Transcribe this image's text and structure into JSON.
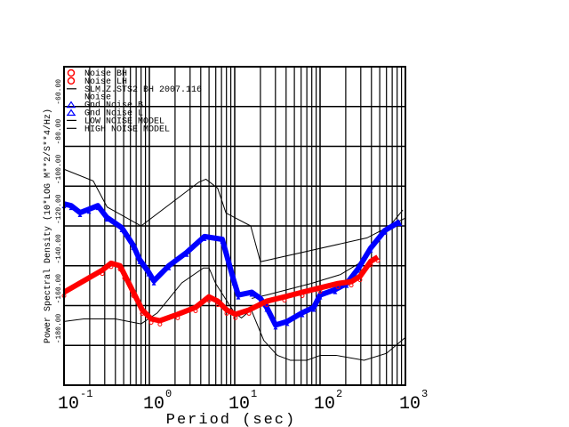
{
  "chart_data": {
    "type": "scatter",
    "title": "",
    "xlabel": "Period (sec)",
    "ylabel": "Power Spectral Density (10*LOG M**2/S**4/Hz)",
    "xscale": "log",
    "xlim": [
      0.1,
      1000
    ],
    "ylim": [
      -200,
      -40
    ],
    "grid": true,
    "legend_placement": "top-left",
    "x_ticks": [
      {
        "base": "10",
        "exp": "-1",
        "value": 0.1
      },
      {
        "base": "10",
        "exp": "0",
        "value": 1
      },
      {
        "base": "10",
        "exp": "1",
        "value": 10
      },
      {
        "base": "10",
        "exp": "2",
        "value": 100
      },
      {
        "base": "10",
        "exp": "3",
        "value": 1000
      }
    ],
    "y_ticks": [
      {
        "label": "-60.00",
        "value": -60
      },
      {
        "label": "-80.00",
        "value": -80
      },
      {
        "label": "-100.00",
        "value": -100
      },
      {
        "label": "-120.00",
        "value": -120
      },
      {
        "label": "-140.00",
        "value": -140
      },
      {
        "label": "-160.00",
        "value": -160
      },
      {
        "label": "-180.00",
        "value": -180
      }
    ],
    "legend": [
      {
        "label": "Noise BH",
        "symbol": "circle",
        "color": "#ff0000"
      },
      {
        "label": "Noise LH",
        "symbol": "circle",
        "color": "#ff0000"
      },
      {
        "label": "SLM.Z.STS2 BH  2007.116",
        "symbol": "line",
        "color": "#000000"
      },
      {
        "label": "Noise",
        "symbol": "none",
        "color": "#000000"
      },
      {
        "label": "Gnd Noise B",
        "symbol": "triangle",
        "color": "#0000ff"
      },
      {
        "label": "Gnd Noise L",
        "symbol": "triangle",
        "color": "#0000ff"
      },
      {
        "label": "LOW NOISE MODEL",
        "symbol": "line",
        "color": "#000000"
      },
      {
        "label": "HIGH NOISE MODEL",
        "symbol": "line",
        "color": "#000000"
      }
    ],
    "series": [
      {
        "name": "Gnd Noise B",
        "color": "#0000ff",
        "marker": "triangle",
        "x": [
          0.1,
          0.121,
          0.154,
          0.196,
          0.249,
          0.316,
          0.475,
          0.649,
          0.768,
          0.976,
          1.13,
          1.69,
          2.74,
          4.42,
          7.14,
          9.78,
          11.0,
          15.8,
          20.0,
          23.7,
          30.1,
          41.2,
          61.9,
          84.5,
          100,
          150,
          205,
          281,
          392,
          576,
          866
        ],
        "y": [
          -108.9,
          -109.8,
          -113.3,
          -111.6,
          -109.8,
          -115.6,
          -120.9,
          -129.8,
          -136.9,
          -143.1,
          -147.6,
          -140,
          -133.3,
          -125.3,
          -126.7,
          -147.6,
          -154.7,
          -153.3,
          -156.4,
          -160.9,
          -169.8,
          -168,
          -163.6,
          -160.9,
          -154.7,
          -152,
          -148.9,
          -141.3,
          -131.1,
          -122.2,
          -117.8
        ]
      },
      {
        "name": "Noise LH",
        "color": "#ff0000",
        "marker": "circle",
        "x": [
          0.1,
          0.281,
          0.356,
          0.453,
          0.511,
          0.649,
          0.826,
          1.05,
          1.33,
          2.15,
          3.48,
          4.99,
          6.34,
          8.06,
          10.2,
          14.7,
          23.7,
          38.3,
          61.9,
          100,
          162,
          232,
          294,
          392,
          475
        ],
        "y": [
          -153.3,
          -142.2,
          -138.7,
          -140,
          -144.4,
          -153.3,
          -162.2,
          -166.7,
          -167.6,
          -164.4,
          -160.9,
          -155.6,
          -157.8,
          -162.2,
          -164.4,
          -162.2,
          -157.8,
          -155.6,
          -153.3,
          -151.1,
          -148.9,
          -148,
          -145.3,
          -137.8,
          -135.6
        ]
      },
      {
        "name": "SLM.Z.STS2 BH 2007.116 Noise",
        "color": "#000000",
        "marker": "line",
        "x": [
          15.8,
          23.7,
          78.7,
          174,
          281,
          933
        ],
        "y": [
          -156.4,
          -154.7,
          -148.9,
          -144.4,
          -139,
          -112
        ]
      },
      {
        "name": "LOW NOISE MODEL",
        "color": "#000000",
        "marker": "line",
        "x": [
          0.1,
          0.17,
          0.4,
          0.8,
          1.24,
          2.4,
          4.3,
          5,
          6,
          10,
          12,
          15.6,
          21.9,
          31.6,
          45,
          70,
          101,
          154,
          328,
          600,
          1000
        ],
        "y": [
          -168,
          -166.7,
          -166.7,
          -169.2,
          -163.7,
          -148.6,
          -141.1,
          -141.1,
          -149,
          -163.8,
          -166.2,
          -162.1,
          -177.5,
          -185,
          -187.5,
          -187.5,
          -185,
          -185,
          -187.5,
          -184,
          -176
        ]
      },
      {
        "name": "HIGH NOISE MODEL",
        "color": "#000000",
        "marker": "line",
        "x": [
          0.1,
          0.22,
          0.32,
          0.8,
          3.8,
          4.6,
          6.3,
          7.9,
          15.4,
          20,
          354.8,
          1000
        ],
        "y": [
          -91.5,
          -97.4,
          -110.5,
          -120,
          -98,
          -96.5,
          -101,
          -113.5,
          -120,
          -138,
          -126,
          -116
        ]
      }
    ]
  }
}
